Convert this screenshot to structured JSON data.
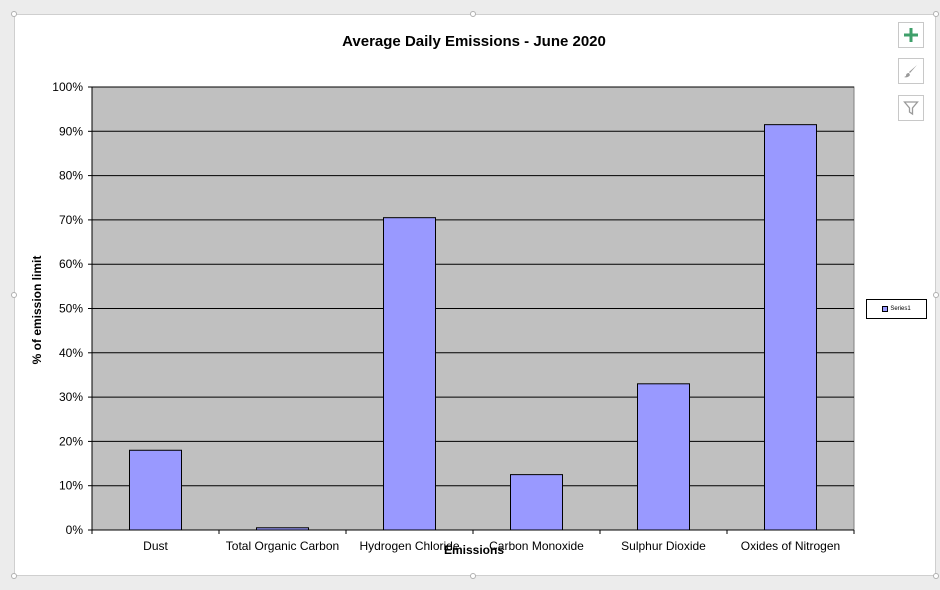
{
  "chart_data": {
    "type": "bar",
    "title": "Average Daily Emissions - June 2020",
    "xlabel": "Emissions",
    "ylabel": "% of emission limit",
    "categories": [
      "Dust",
      "Total Organic Carbon",
      "Hydrogen Chloride",
      "Carbon Monoxide",
      "Sulphur Dioxide",
      "Oxides of Nitrogen"
    ],
    "series": [
      {
        "name": "Series1",
        "values": [
          18,
          0.5,
          70.5,
          12.5,
          33,
          91.5
        ]
      }
    ],
    "ylim": [
      0,
      100
    ],
    "yticks": [
      "0%",
      "10%",
      "20%",
      "30%",
      "40%",
      "50%",
      "60%",
      "70%",
      "80%",
      "90%",
      "100%"
    ],
    "grid": true,
    "legend_position": "right",
    "colors": {
      "bar": "#9999ff",
      "plot_background": "#c0c0c0"
    }
  },
  "toolbar": {
    "add_icon": "plus-icon",
    "style_icon": "brush-icon",
    "filter_icon": "filter-icon"
  }
}
